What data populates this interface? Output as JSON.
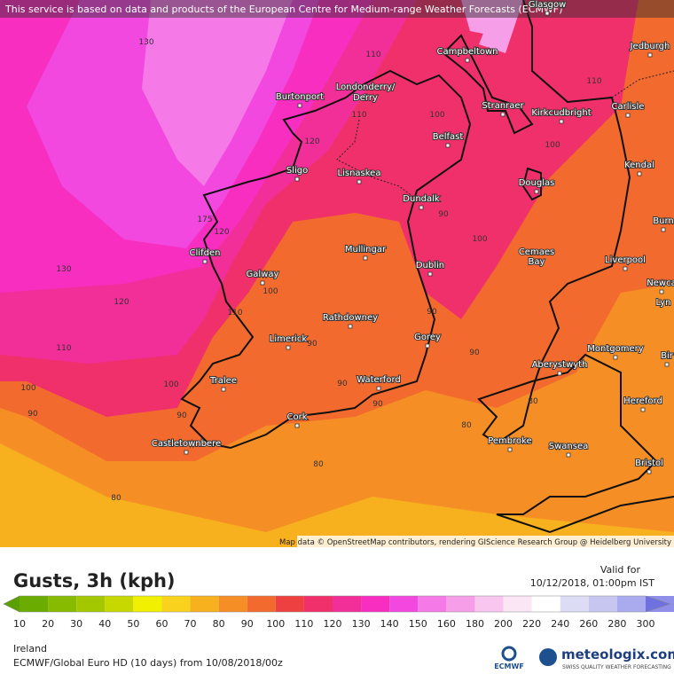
{
  "header": {
    "notice": "This service is based on data and products of the European Centre for Medium-range Weather Forecasts (ECMWF)"
  },
  "map": {
    "places": [
      "Glasgow",
      "Jedburgh",
      "Campbeltown",
      "Londonderry/",
      "Derry",
      "Burtonport",
      "Stranraer",
      "Kirkcudbright",
      "Carlisle",
      "Belfast",
      "Lisnaskea",
      "Sligo",
      "Kendal",
      "Douglas",
      "Dundalk",
      "Burn",
      "Mullingar",
      "Clifden",
      "Cemaes",
      "Bay",
      "Liverpool",
      "Dublin",
      "Galway",
      "Newca",
      "Lyn",
      "Rathdowney",
      "Limerick",
      "Gorey",
      "Montgomery",
      "Bir",
      "Aberystwyth",
      "Waterford",
      "Tralee",
      "Hereford",
      "Cork",
      "Castletownbere",
      "Pembroke",
      "Swansea",
      "Bristol"
    ],
    "contour_labels": [
      130,
      110,
      110,
      120,
      100,
      110,
      100,
      175,
      120,
      130,
      120,
      100,
      110,
      90,
      100,
      90,
      90,
      110,
      90,
      100,
      100,
      90,
      90,
      90,
      90,
      80,
      80,
      80,
      80
    ],
    "attribution": "Map data © OpenStreetMap contributors, rendering GIScience Research Group @ Heidelberg University"
  },
  "legend": {
    "title": "Gusts, 3h (kph)",
    "valid_label": "Valid for",
    "valid_time": "10/12/2018, 01:00pm IST",
    "ticks": [
      10,
      20,
      30,
      40,
      50,
      60,
      70,
      80,
      90,
      100,
      110,
      120,
      130,
      140,
      150,
      160,
      180,
      200,
      220,
      240,
      260,
      280,
      300
    ],
    "colors": [
      "#5aa000",
      "#6aac00",
      "#86bb00",
      "#a3c800",
      "#c6d800",
      "#f0f000",
      "#f9d21e",
      "#f7b01e",
      "#f58f25",
      "#f26a2e",
      "#ee4040",
      "#f0306a",
      "#f22e98",
      "#f72ec0",
      "#f248e0",
      "#f57ae8",
      "#f79ee8",
      "#f9c6ef",
      "#fbe6f6",
      "#ffffff",
      "#dcdcf5",
      "#c6c6f0",
      "#aaaaee",
      "#8f8fea",
      "#7070e0"
    ]
  },
  "footer": {
    "region": "Ireland",
    "model": "ECMWF/Global Euro HD (10 days) from 10/08/2018/00z",
    "ecmwf_logo": "ECMWF",
    "brand": "meteologix.com",
    "tagline": "SWISS QUALITY WEATHER FORECASTING"
  }
}
